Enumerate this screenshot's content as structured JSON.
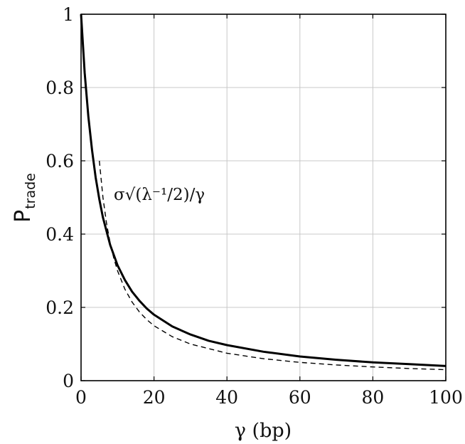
{
  "chart_data": {
    "type": "line",
    "xlabel": "γ (bp)",
    "ylabel": "P",
    "ylabel_subscript": "trade",
    "xlim": [
      0,
      100
    ],
    "ylim": [
      0,
      1
    ],
    "xticks": [
      0,
      20,
      40,
      60,
      80,
      100
    ],
    "yticks": [
      0,
      0.2,
      0.4,
      0.6,
      0.8,
      1
    ],
    "xtick_labels": [
      "0",
      "20",
      "40",
      "60",
      "80",
      "100"
    ],
    "ytick_labels": [
      "0",
      "0.2",
      "0.4",
      "0.6",
      "0.8",
      "1"
    ],
    "grid": true,
    "annotation": "σ√(λ⁻¹/2)/γ",
    "series": [
      {
        "style": "solid",
        "color": "#000000",
        "x": [
          0,
          1,
          2,
          3,
          4,
          5,
          6,
          8,
          10,
          12,
          14,
          16,
          18,
          20,
          25,
          30,
          35,
          40,
          50,
          60,
          70,
          80,
          90,
          100
        ],
        "y": [
          1.0,
          0.84,
          0.72,
          0.63,
          0.555,
          0.495,
          0.445,
          0.37,
          0.315,
          0.275,
          0.243,
          0.218,
          0.197,
          0.18,
          0.148,
          0.126,
          0.109,
          0.097,
          0.079,
          0.066,
          0.057,
          0.05,
          0.045,
          0.04
        ]
      },
      {
        "style": "dashed",
        "color": "#000000",
        "x": [
          5,
          6,
          7,
          8,
          9,
          10,
          12,
          14,
          16,
          18,
          20,
          25,
          30,
          40,
          50,
          60,
          70,
          80,
          90,
          100
        ],
        "y": [
          0.6,
          0.5,
          0.4286,
          0.375,
          0.3333,
          0.3,
          0.25,
          0.2143,
          0.1875,
          0.1667,
          0.15,
          0.12,
          0.1,
          0.075,
          0.06,
          0.05,
          0.0429,
          0.0375,
          0.0333,
          0.03
        ]
      }
    ]
  }
}
